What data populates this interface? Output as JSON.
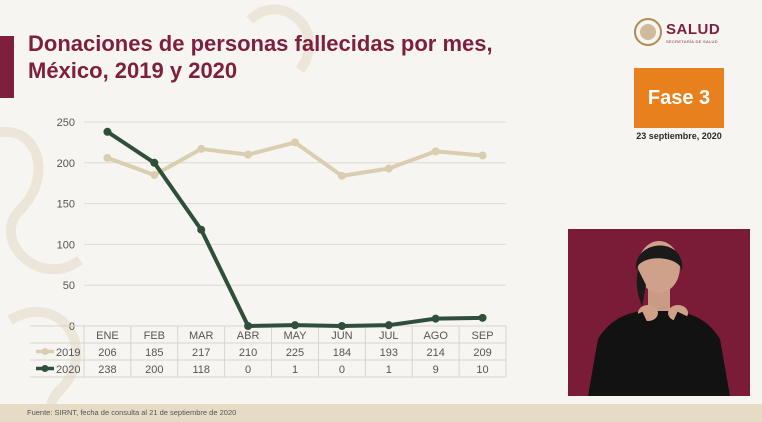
{
  "slide": {
    "title_line1": "Donaciones de personas fallecidas por mes,",
    "title_line2": "México, 2019 y 2020",
    "logo_text": "SALUD",
    "logo_subtext": "SECRETARÍA DE SALUD",
    "phase_label": "Fase 3",
    "date": "23 septiembre, 2020",
    "source": "Fuente: SIRNT, fecha de consulta al 21 de septiembre de 2020"
  },
  "chart_data": {
    "type": "line",
    "title": "Donaciones de personas fallecidas por mes, México, 2019 y 2020",
    "categories": [
      "ENE",
      "FEB",
      "MAR",
      "ABR",
      "MAY",
      "JUN",
      "JUL",
      "AGO",
      "SEP"
    ],
    "series": [
      {
        "name": "2019",
        "values": [
          206,
          185,
          217,
          210,
          225,
          184,
          193,
          214,
          209
        ],
        "color": "#d9cfb0"
      },
      {
        "name": "2020",
        "values": [
          238,
          200,
          118,
          0,
          1,
          0,
          1,
          9,
          10
        ],
        "color": "#2f4f3a"
      }
    ],
    "ylim": [
      0,
      250
    ],
    "yticks": [
      0,
      50,
      100,
      150,
      200,
      250
    ],
    "grid": true,
    "legend": "data-table-left",
    "data_table": true
  },
  "colors": {
    "title": "#7d1f3d",
    "phase_bg": "#e8801e",
    "series_2019": "#d9cfb0",
    "series_2020": "#2f4f3a"
  }
}
